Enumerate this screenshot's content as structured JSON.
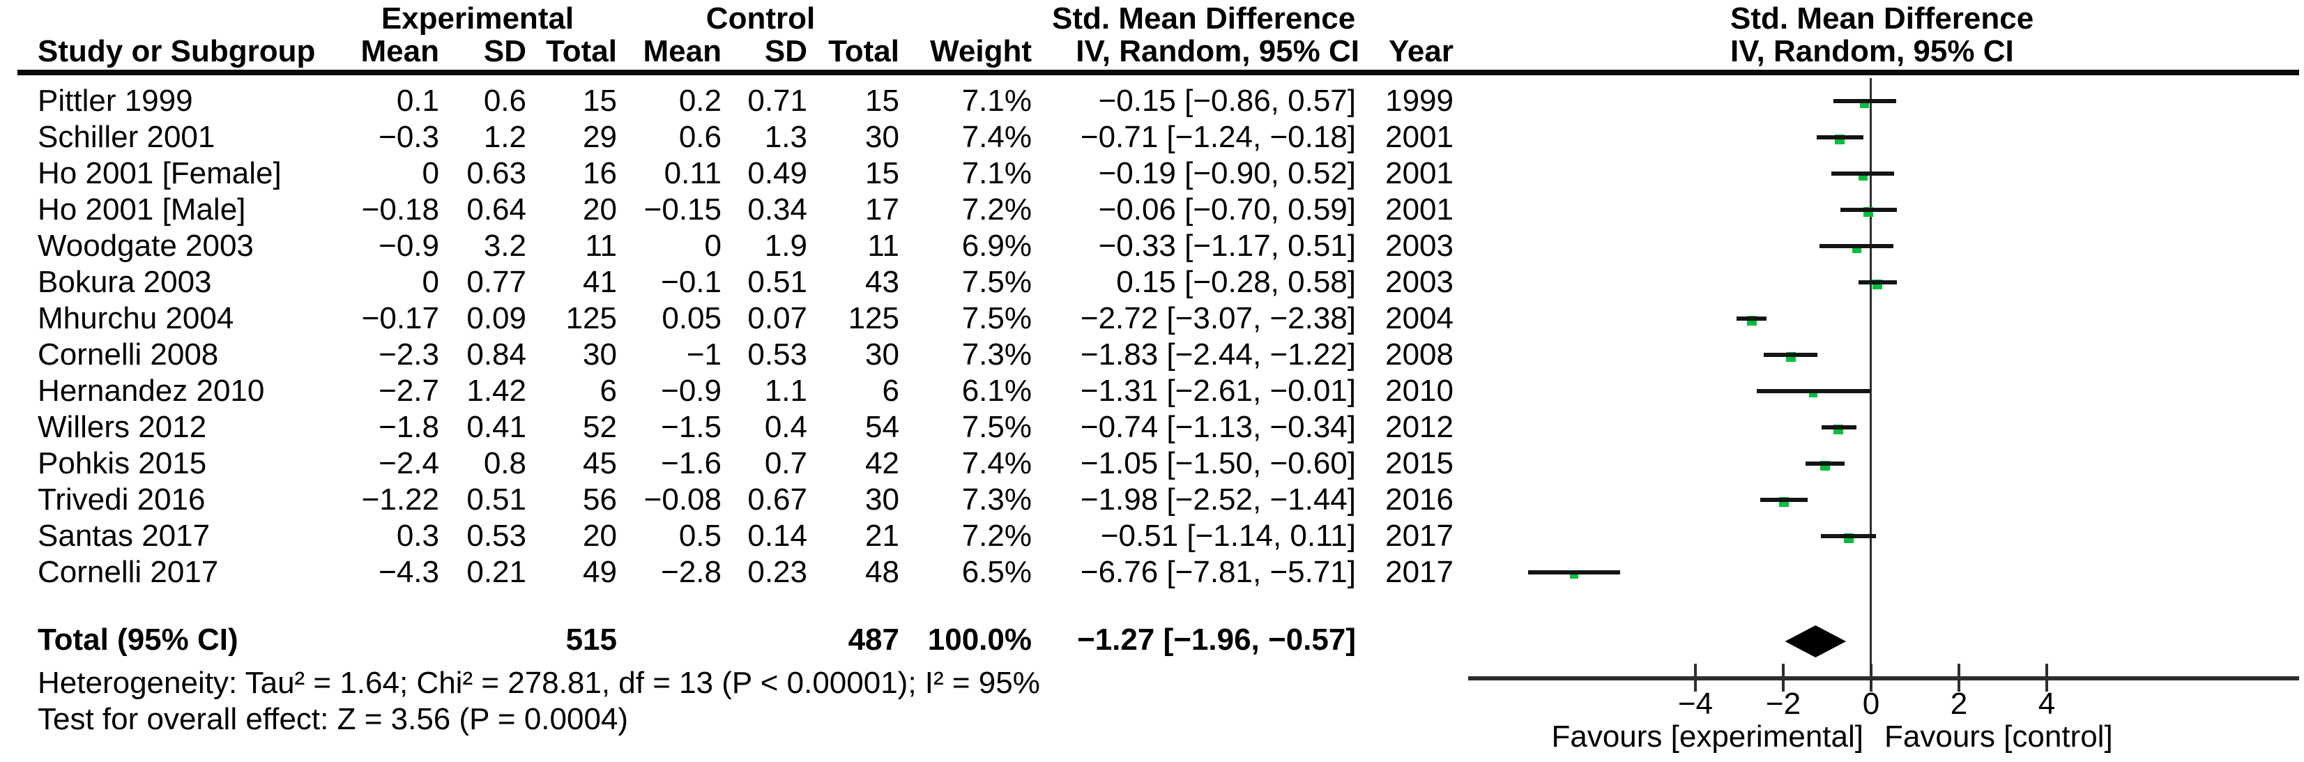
{
  "header": {
    "group_experimental": "Experimental",
    "group_control": "Control",
    "group_smd": "Std. Mean Difference",
    "col_study": "Study or Subgroup",
    "col_mean": "Mean",
    "col_sd": "SD",
    "col_total": "Total",
    "col_weight": "Weight",
    "col_iv": "IV, Random, 95% CI",
    "col_year": "Year"
  },
  "footnotes": {
    "heterogeneity": "Heterogeneity: Tau² = 1.64; Chi² = 278.81, df = 13 (P < 0.00001); I² = 95%",
    "overall": "Test for overall effect: Z = 3.56 (P = 0.0004)"
  },
  "chart_data": {
    "type": "scatter",
    "title": "Std. Mean Difference",
    "subtitle": "IV, Random, 95% CI",
    "xlim": [
      -9.2,
      9.7
    ],
    "ticks": [
      -4,
      -2,
      0,
      2,
      4
    ],
    "favours_left": "Favours [experimental]",
    "favours_right": "Favours [control]",
    "marker_color": "#00be3c",
    "line_color": "#141414",
    "studies": [
      {
        "name": "Pittler 1999",
        "exp_mean": "0.1",
        "exp_sd": "0.6",
        "exp_total": "15",
        "ctrl_mean": "0.2",
        "ctrl_sd": "0.71",
        "ctrl_total": "15",
        "weight": "7.1%",
        "weight_pct": 7.1,
        "ci_text": "−0.15 [−0.86, 0.57]",
        "year": "1999",
        "smd": -0.15,
        "lo": -0.86,
        "hi": 0.57
      },
      {
        "name": "Schiller 2001",
        "exp_mean": "−0.3",
        "exp_sd": "1.2",
        "exp_total": "29",
        "ctrl_mean": "0.6",
        "ctrl_sd": "1.3",
        "ctrl_total": "30",
        "weight": "7.4%",
        "weight_pct": 7.4,
        "ci_text": "−0.71 [−1.24, −0.18]",
        "year": "2001",
        "smd": -0.71,
        "lo": -1.24,
        "hi": -0.18
      },
      {
        "name": "Ho 2001 [Female]",
        "exp_mean": "0",
        "exp_sd": "0.63",
        "exp_total": "16",
        "ctrl_mean": "0.11",
        "ctrl_sd": "0.49",
        "ctrl_total": "15",
        "weight": "7.1%",
        "weight_pct": 7.1,
        "ci_text": "−0.19 [−0.90, 0.52]",
        "year": "2001",
        "smd": -0.19,
        "lo": -0.9,
        "hi": 0.52
      },
      {
        "name": "Ho 2001 [Male]",
        "exp_mean": "−0.18",
        "exp_sd": "0.64",
        "exp_total": "20",
        "ctrl_mean": "−0.15",
        "ctrl_sd": "0.34",
        "ctrl_total": "17",
        "weight": "7.2%",
        "weight_pct": 7.2,
        "ci_text": "−0.06 [−0.70, 0.59]",
        "year": "2001",
        "smd": -0.06,
        "lo": -0.7,
        "hi": 0.59
      },
      {
        "name": "Woodgate 2003",
        "exp_mean": "−0.9",
        "exp_sd": "3.2",
        "exp_total": "11",
        "ctrl_mean": "0",
        "ctrl_sd": "1.9",
        "ctrl_total": "11",
        "weight": "6.9%",
        "weight_pct": 6.9,
        "ci_text": "−0.33 [−1.17, 0.51]",
        "year": "2003",
        "smd": -0.33,
        "lo": -1.17,
        "hi": 0.51
      },
      {
        "name": "Bokura 2003",
        "exp_mean": "0",
        "exp_sd": "0.77",
        "exp_total": "41",
        "ctrl_mean": "−0.1",
        "ctrl_sd": "0.51",
        "ctrl_total": "43",
        "weight": "7.5%",
        "weight_pct": 7.5,
        "ci_text": "0.15 [−0.28, 0.58]",
        "year": "2003",
        "smd": 0.15,
        "lo": -0.28,
        "hi": 0.58
      },
      {
        "name": "Mhurchu 2004",
        "exp_mean": "−0.17",
        "exp_sd": "0.09",
        "exp_total": "125",
        "ctrl_mean": "0.05",
        "ctrl_sd": "0.07",
        "ctrl_total": "125",
        "weight": "7.5%",
        "weight_pct": 7.5,
        "ci_text": "−2.72 [−3.07, −2.38]",
        "year": "2004",
        "smd": -2.72,
        "lo": -3.07,
        "hi": -2.38
      },
      {
        "name": "Cornelli 2008",
        "exp_mean": "−2.3",
        "exp_sd": "0.84",
        "exp_total": "30",
        "ctrl_mean": "−1",
        "ctrl_sd": "0.53",
        "ctrl_total": "30",
        "weight": "7.3%",
        "weight_pct": 7.3,
        "ci_text": "−1.83 [−2.44, −1.22]",
        "year": "2008",
        "smd": -1.83,
        "lo": -2.44,
        "hi": -1.22
      },
      {
        "name": "Hernandez 2010",
        "exp_mean": "−2.7",
        "exp_sd": "1.42",
        "exp_total": "6",
        "ctrl_mean": "−0.9",
        "ctrl_sd": "1.1",
        "ctrl_total": "6",
        "weight": "6.1%",
        "weight_pct": 6.1,
        "ci_text": "−1.31 [−2.61, −0.01]",
        "year": "2010",
        "smd": -1.31,
        "lo": -2.61,
        "hi": -0.01
      },
      {
        "name": "Willers 2012",
        "exp_mean": "−1.8",
        "exp_sd": "0.41",
        "exp_total": "52",
        "ctrl_mean": "−1.5",
        "ctrl_sd": "0.4",
        "ctrl_total": "54",
        "weight": "7.5%",
        "weight_pct": 7.5,
        "ci_text": "−0.74 [−1.13, −0.34]",
        "year": "2012",
        "smd": -0.74,
        "lo": -1.13,
        "hi": -0.34
      },
      {
        "name": "Pohkis 2015",
        "exp_mean": "−2.4",
        "exp_sd": "0.8",
        "exp_total": "45",
        "ctrl_mean": "−1.6",
        "ctrl_sd": "0.7",
        "ctrl_total": "42",
        "weight": "7.4%",
        "weight_pct": 7.4,
        "ci_text": "−1.05 [−1.50, −0.60]",
        "year": "2015",
        "smd": -1.05,
        "lo": -1.5,
        "hi": -0.6
      },
      {
        "name": "Trivedi 2016",
        "exp_mean": "−1.22",
        "exp_sd": "0.51",
        "exp_total": "56",
        "ctrl_mean": "−0.08",
        "ctrl_sd": "0.67",
        "ctrl_total": "30",
        "weight": "7.3%",
        "weight_pct": 7.3,
        "ci_text": "−1.98 [−2.52, −1.44]",
        "year": "2016",
        "smd": -1.98,
        "lo": -2.52,
        "hi": -1.44
      },
      {
        "name": "Santas 2017",
        "exp_mean": "0.3",
        "exp_sd": "0.53",
        "exp_total": "20",
        "ctrl_mean": "0.5",
        "ctrl_sd": "0.14",
        "ctrl_total": "21",
        "weight": "7.2%",
        "weight_pct": 7.2,
        "ci_text": "−0.51 [−1.14, 0.11]",
        "year": "2017",
        "smd": -0.51,
        "lo": -1.14,
        "hi": 0.11
      },
      {
        "name": "Cornelli 2017",
        "exp_mean": "−4.3",
        "exp_sd": "0.21",
        "exp_total": "49",
        "ctrl_mean": "−2.8",
        "ctrl_sd": "0.23",
        "ctrl_total": "48",
        "weight": "6.5%",
        "weight_pct": 6.5,
        "ci_text": "−6.76 [−7.81, −5.71]",
        "year": "2017",
        "smd": -6.76,
        "lo": -7.81,
        "hi": -5.71
      }
    ],
    "total": {
      "label": "Total (95% CI)",
      "exp_total": "515",
      "ctrl_total": "487",
      "weight": "100.0%",
      "ci_text": "−1.27 [−1.96, −0.57]",
      "smd": -1.27,
      "lo": -1.96,
      "hi": -0.57
    }
  }
}
